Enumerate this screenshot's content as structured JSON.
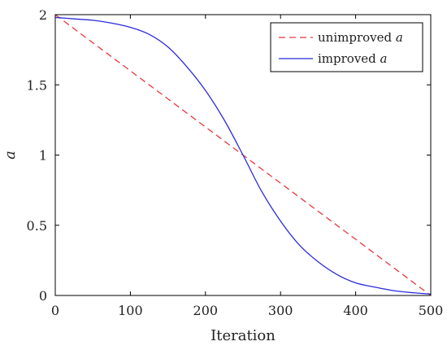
{
  "chart_data": {
    "type": "line",
    "xlabel": "Iteration",
    "ylabel": "a",
    "xlim": [
      0,
      500
    ],
    "ylim": [
      0,
      2
    ],
    "x_ticks": [
      "0",
      "100",
      "200",
      "300",
      "400",
      "500"
    ],
    "y_ticks": [
      "0",
      "0.5",
      "1",
      "1.5",
      "2"
    ],
    "grid": false,
    "legend_position": "top-right",
    "series": [
      {
        "name": "unimproved a",
        "legend_prefix": "unimproved ",
        "legend_symbol": "a",
        "color": "#e8383d",
        "style": "dashed",
        "x": [
          0,
          500
        ],
        "y": [
          2,
          0
        ]
      },
      {
        "name": "improved a",
        "legend_prefix": "improved ",
        "legend_symbol": "a",
        "color": "#2b2bd9",
        "style": "solid",
        "x": [
          0,
          25,
          50,
          75,
          100,
          125,
          150,
          175,
          200,
          225,
          250,
          275,
          300,
          325,
          350,
          375,
          400,
          425,
          450,
          475,
          500
        ],
        "y": [
          1.98,
          1.97,
          1.96,
          1.94,
          1.91,
          1.86,
          1.77,
          1.63,
          1.46,
          1.25,
          1.0,
          0.74,
          0.53,
          0.36,
          0.24,
          0.15,
          0.09,
          0.06,
          0.035,
          0.02,
          0.01
        ]
      }
    ]
  }
}
